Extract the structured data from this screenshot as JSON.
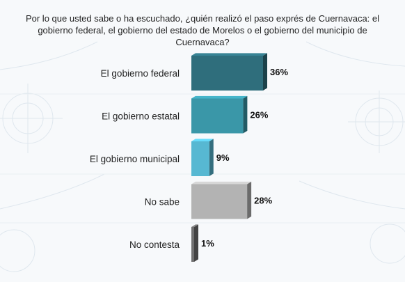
{
  "question": "Por lo que usted sabe o ha escuchado, ¿quién realizó el paso exprés de Cuernavaca: el gobierno federal, el gobierno del estado de Morelos o el gobierno del municipio de Cuernavaca?",
  "chart_data": {
    "type": "bar",
    "orientation": "horizontal",
    "title": "Por lo que usted sabe o ha escuchado, ¿quién realizó el paso exprés de Cuernavaca: el gobierno federal, el gobierno del estado de Morelos o el gobierno del municipio de Cuernavaca?",
    "categories": [
      "El gobierno federal",
      "El gobierno estatal",
      "El gobierno municipal",
      "No sabe",
      "No contesta"
    ],
    "values": [
      36,
      26,
      9,
      28,
      1
    ],
    "value_labels": [
      "36%",
      "26%",
      "9%",
      "28%",
      "1%"
    ],
    "colors": [
      "#2f6e7c",
      "#3a97a8",
      "#57b8d2",
      "#b3b3b3",
      "#707070"
    ],
    "xlim": [
      0,
      40
    ],
    "grid": false,
    "legend": "none"
  }
}
